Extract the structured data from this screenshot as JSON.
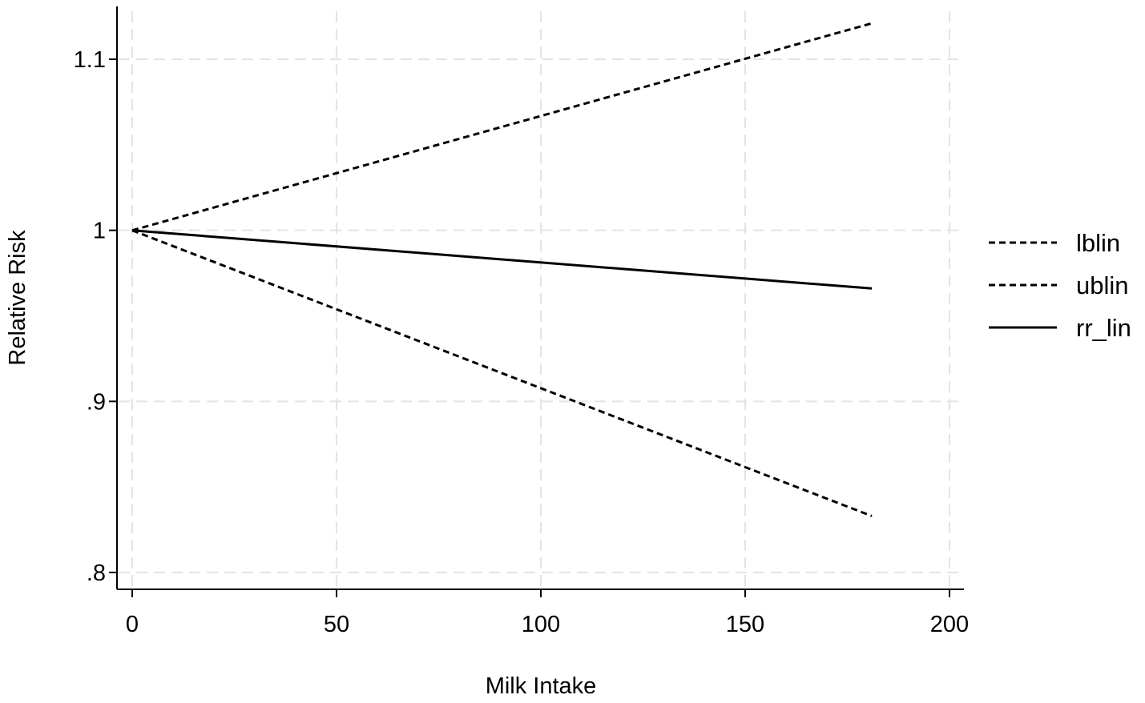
{
  "chart_data": {
    "type": "line",
    "title": "",
    "xlabel": "Milk Intake",
    "ylabel": "Relative Risk",
    "xlim": [
      0,
      200
    ],
    "ylim": [
      0.8,
      1.1
    ],
    "x_ticks": [
      0,
      50,
      100,
      150,
      200
    ],
    "x_tick_labels": [
      "0",
      "50",
      "100",
      "150",
      "200"
    ],
    "y_ticks": [
      0.8,
      0.9,
      1.0,
      1.1
    ],
    "y_tick_labels": [
      ".8",
      ".9",
      "1",
      "1.1"
    ],
    "grid": true,
    "legend_position": "right",
    "series": [
      {
        "name": "lblin",
        "style": "dashed",
        "color": "#000000",
        "x": [
          0,
          181
        ],
        "y": [
          1.0,
          0.833
        ]
      },
      {
        "name": "ublin",
        "style": "dashed",
        "color": "#000000",
        "x": [
          0,
          181
        ],
        "y": [
          1.0,
          1.121
        ]
      },
      {
        "name": "rr_lin",
        "style": "solid",
        "color": "#000000",
        "x": [
          0,
          181
        ],
        "y": [
          1.0,
          0.966
        ]
      }
    ]
  }
}
